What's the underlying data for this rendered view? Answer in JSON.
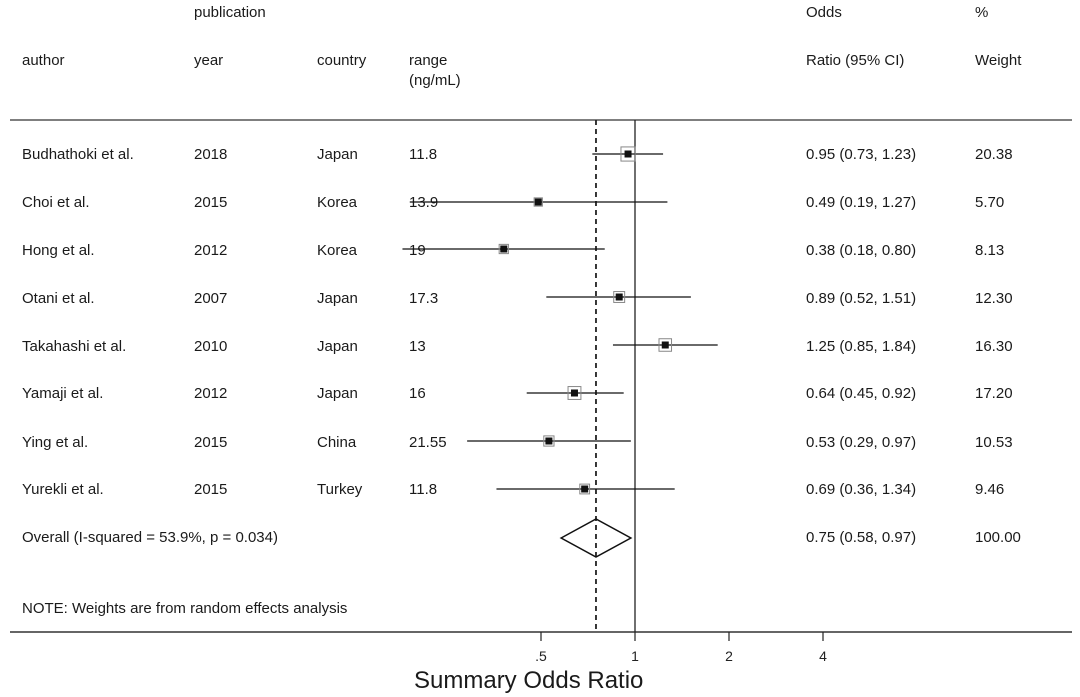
{
  "headers": {
    "author": "author",
    "publication": "publication",
    "year": "year",
    "country": "country",
    "range_line1": "range",
    "range_line2": "(ng/mL)",
    "or_line1": "Odds",
    "or_line2": "Ratio (95% CI)",
    "weight_line1": "%",
    "weight_line2": "Weight"
  },
  "studies": [
    {
      "author": "Budhathoki et al.",
      "year": "2018",
      "country": "Japan",
      "range": "11.8",
      "ci_text": "0.95 (0.73, 1.23)",
      "weight": "20.38"
    },
    {
      "author": "Choi et al.",
      "year": "2015",
      "country": "Korea",
      "range": "13.9",
      "ci_text": "0.49 (0.19, 1.27)",
      "weight": "5.70"
    },
    {
      "author": "Hong et al.",
      "year": "2012",
      "country": "Korea",
      "range": "19",
      "ci_text": "0.38 (0.18, 0.80)",
      "weight": "8.13"
    },
    {
      "author": "Otani et al.",
      "year": "2007",
      "country": "Japan",
      "range": "17.3",
      "ci_text": "0.89 (0.52, 1.51)",
      "weight": "12.30"
    },
    {
      "author": "Takahashi et al.",
      "year": "2010",
      "country": "Japan",
      "range": "13",
      "ci_text": "1.25 (0.85, 1.84)",
      "weight": "16.30"
    },
    {
      "author": "Yamaji et al.",
      "year": "2012",
      "country": "Japan",
      "range": "16",
      "ci_text": "0.64 (0.45, 0.92)",
      "weight": "17.20"
    },
    {
      "author": "Ying et al.",
      "year": "2015",
      "country": "China",
      "range": "21.55",
      "ci_text": "0.53 (0.29, 0.97)",
      "weight": "10.53"
    },
    {
      "author": "Yurekli et al.",
      "year": "2015",
      "country": "Turkey",
      "range": "11.8",
      "ci_text": "0.69 (0.36, 1.34)",
      "weight": "9.46"
    }
  ],
  "overall": {
    "label": "Overall  (I-squared = 53.9%, p = 0.034)",
    "ci_text": "0.75 (0.58, 0.97)",
    "weight": "100.00"
  },
  "note": "NOTE: Weights are from random effects analysis",
  "chart_data": {
    "type": "scatter",
    "xlabel": "Summary Odds Ratio",
    "x_scale": "log",
    "xticks": [
      0.5,
      1,
      2,
      4
    ],
    "xtick_labels": [
      ".5",
      "1",
      "2",
      "4"
    ],
    "null_line": 1,
    "series": [
      {
        "categories": [
          "Budhathoki et al.",
          "Choi et al.",
          "Hong et al.",
          "Otani et al.",
          "Takahashi et al.",
          "Yamaji et al.",
          "Ying et al.",
          "Yurekli et al."
        ],
        "or": [
          0.95,
          0.49,
          0.38,
          0.89,
          1.25,
          0.64,
          0.53,
          0.69
        ],
        "lower": [
          0.73,
          0.19,
          0.18,
          0.52,
          0.85,
          0.45,
          0.29,
          0.36
        ],
        "upper": [
          1.23,
          1.27,
          0.8,
          1.51,
          1.84,
          0.92,
          0.97,
          1.34
        ],
        "weight": [
          20.38,
          5.7,
          8.13,
          12.3,
          16.3,
          17.2,
          10.53,
          9.46
        ]
      }
    ],
    "overall": {
      "or": 0.75,
      "lower": 0.58,
      "upper": 0.97
    }
  }
}
